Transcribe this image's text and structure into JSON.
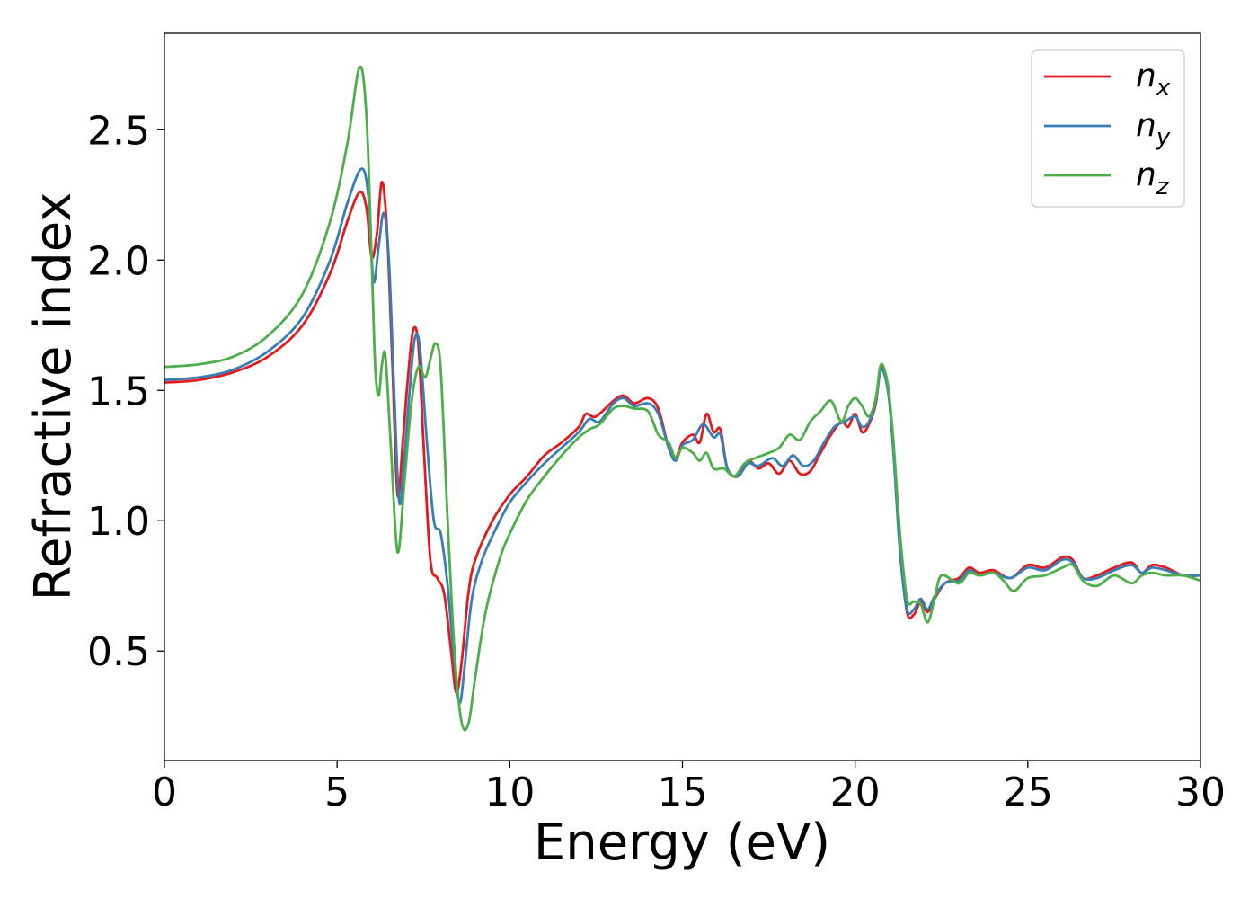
{
  "chart_data": {
    "type": "line",
    "xlabel": "Energy (eV)",
    "ylabel": "Refractive index",
    "xlim": [
      0,
      30
    ],
    "ylim": [
      0.08,
      2.87
    ],
    "xticks": [
      0,
      5,
      10,
      15,
      20,
      25,
      30
    ],
    "xtick_labels": [
      "0",
      "5",
      "10",
      "15",
      "20",
      "25",
      "30"
    ],
    "yticks": [
      0.5,
      1.0,
      1.5,
      2.0,
      2.5
    ],
    "ytick_labels": [
      "0.5",
      "1.0",
      "1.5",
      "2.0",
      "2.5"
    ],
    "grid": false,
    "legend_position": "top-right",
    "series": [
      {
        "name": "n",
        "subscript": "x",
        "color": "#e41a1c",
        "points": [
          [
            0,
            1.53
          ],
          [
            1,
            1.54
          ],
          [
            2,
            1.57
          ],
          [
            3,
            1.63
          ],
          [
            4,
            1.75
          ],
          [
            4.8,
            1.95
          ],
          [
            5.3,
            2.15
          ],
          [
            5.65,
            2.26
          ],
          [
            5.85,
            2.2
          ],
          [
            6.0,
            2.01
          ],
          [
            6.15,
            2.1
          ],
          [
            6.3,
            2.3
          ],
          [
            6.45,
            2.1
          ],
          [
            6.6,
            1.6
          ],
          [
            6.75,
            1.1
          ],
          [
            6.9,
            1.3
          ],
          [
            7.05,
            1.55
          ],
          [
            7.2,
            1.73
          ],
          [
            7.35,
            1.68
          ],
          [
            7.5,
            1.3
          ],
          [
            7.7,
            0.85
          ],
          [
            7.9,
            0.78
          ],
          [
            8.1,
            0.72
          ],
          [
            8.3,
            0.5
          ],
          [
            8.45,
            0.34
          ],
          [
            8.6,
            0.45
          ],
          [
            8.8,
            0.72
          ],
          [
            9.0,
            0.85
          ],
          [
            9.5,
            1.0
          ],
          [
            10,
            1.1
          ],
          [
            10.5,
            1.17
          ],
          [
            11,
            1.25
          ],
          [
            11.5,
            1.3
          ],
          [
            12,
            1.36
          ],
          [
            12.2,
            1.41
          ],
          [
            12.5,
            1.4
          ],
          [
            13,
            1.46
          ],
          [
            13.3,
            1.48
          ],
          [
            13.6,
            1.45
          ],
          [
            14,
            1.47
          ],
          [
            14.3,
            1.43
          ],
          [
            14.6,
            1.28
          ],
          [
            14.8,
            1.24
          ],
          [
            15,
            1.3
          ],
          [
            15.3,
            1.33
          ],
          [
            15.5,
            1.3
          ],
          [
            15.7,
            1.41
          ],
          [
            15.9,
            1.34
          ],
          [
            16.1,
            1.35
          ],
          [
            16.3,
            1.2
          ],
          [
            16.6,
            1.17
          ],
          [
            16.9,
            1.23
          ],
          [
            17.2,
            1.2
          ],
          [
            17.5,
            1.22
          ],
          [
            17.8,
            1.18
          ],
          [
            18.1,
            1.23
          ],
          [
            18.4,
            1.18
          ],
          [
            18.7,
            1.19
          ],
          [
            19,
            1.26
          ],
          [
            19.3,
            1.33
          ],
          [
            19.6,
            1.38
          ],
          [
            19.8,
            1.36
          ],
          [
            20.0,
            1.41
          ],
          [
            20.2,
            1.34
          ],
          [
            20.4,
            1.37
          ],
          [
            20.6,
            1.45
          ],
          [
            20.75,
            1.59
          ],
          [
            20.95,
            1.5
          ],
          [
            21.1,
            1.3
          ],
          [
            21.3,
            0.9
          ],
          [
            21.5,
            0.65
          ],
          [
            21.7,
            0.64
          ],
          [
            21.9,
            0.69
          ],
          [
            22.1,
            0.65
          ],
          [
            22.3,
            0.7
          ],
          [
            22.6,
            0.76
          ],
          [
            23,
            0.78
          ],
          [
            23.3,
            0.82
          ],
          [
            23.6,
            0.8
          ],
          [
            24,
            0.81
          ],
          [
            24.5,
            0.78
          ],
          [
            25,
            0.83
          ],
          [
            25.5,
            0.82
          ],
          [
            26,
            0.86
          ],
          [
            26.3,
            0.85
          ],
          [
            26.6,
            0.78
          ],
          [
            27,
            0.79
          ],
          [
            27.5,
            0.82
          ],
          [
            28,
            0.84
          ],
          [
            28.3,
            0.8
          ],
          [
            28.6,
            0.83
          ],
          [
            29,
            0.82
          ],
          [
            29.5,
            0.79
          ],
          [
            30,
            0.79
          ]
        ]
      },
      {
        "name": "n",
        "subscript": "y",
        "color": "#377eb8",
        "points": [
          [
            0,
            1.54
          ],
          [
            1,
            1.55
          ],
          [
            2,
            1.58
          ],
          [
            3,
            1.65
          ],
          [
            4,
            1.78
          ],
          [
            4.8,
            2.0
          ],
          [
            5.3,
            2.22
          ],
          [
            5.7,
            2.35
          ],
          [
            5.9,
            2.25
          ],
          [
            6.05,
            1.92
          ],
          [
            6.2,
            2.05
          ],
          [
            6.35,
            2.18
          ],
          [
            6.5,
            2.0
          ],
          [
            6.65,
            1.5
          ],
          [
            6.8,
            1.07
          ],
          [
            6.95,
            1.25
          ],
          [
            7.1,
            1.5
          ],
          [
            7.25,
            1.7
          ],
          [
            7.4,
            1.66
          ],
          [
            7.6,
            1.3
          ],
          [
            7.8,
            1.0
          ],
          [
            8.0,
            0.95
          ],
          [
            8.2,
            0.75
          ],
          [
            8.4,
            0.45
          ],
          [
            8.55,
            0.3
          ],
          [
            8.7,
            0.45
          ],
          [
            8.9,
            0.7
          ],
          [
            9.2,
            0.85
          ],
          [
            9.6,
            0.97
          ],
          [
            10,
            1.07
          ],
          [
            10.5,
            1.15
          ],
          [
            11,
            1.22
          ],
          [
            11.5,
            1.28
          ],
          [
            12,
            1.34
          ],
          [
            12.3,
            1.39
          ],
          [
            12.6,
            1.38
          ],
          [
            13,
            1.45
          ],
          [
            13.3,
            1.47
          ],
          [
            13.6,
            1.44
          ],
          [
            14,
            1.45
          ],
          [
            14.3,
            1.41
          ],
          [
            14.6,
            1.28
          ],
          [
            14.8,
            1.23
          ],
          [
            15,
            1.29
          ],
          [
            15.3,
            1.31
          ],
          [
            15.6,
            1.37
          ],
          [
            15.9,
            1.32
          ],
          [
            16.1,
            1.33
          ],
          [
            16.3,
            1.2
          ],
          [
            16.6,
            1.17
          ],
          [
            16.9,
            1.22
          ],
          [
            17.2,
            1.21
          ],
          [
            17.6,
            1.24
          ],
          [
            17.9,
            1.21
          ],
          [
            18.2,
            1.25
          ],
          [
            18.5,
            1.21
          ],
          [
            18.8,
            1.23
          ],
          [
            19.1,
            1.3
          ],
          [
            19.4,
            1.36
          ],
          [
            19.7,
            1.38
          ],
          [
            20.0,
            1.4
          ],
          [
            20.2,
            1.36
          ],
          [
            20.4,
            1.38
          ],
          [
            20.6,
            1.46
          ],
          [
            20.75,
            1.58
          ],
          [
            20.95,
            1.5
          ],
          [
            21.1,
            1.28
          ],
          [
            21.3,
            0.88
          ],
          [
            21.5,
            0.66
          ],
          [
            21.7,
            0.66
          ],
          [
            21.9,
            0.7
          ],
          [
            22.1,
            0.66
          ],
          [
            22.3,
            0.71
          ],
          [
            22.6,
            0.76
          ],
          [
            23,
            0.77
          ],
          [
            23.3,
            0.81
          ],
          [
            23.6,
            0.79
          ],
          [
            24,
            0.8
          ],
          [
            24.5,
            0.78
          ],
          [
            25,
            0.82
          ],
          [
            25.5,
            0.81
          ],
          [
            26,
            0.85
          ],
          [
            26.3,
            0.84
          ],
          [
            26.6,
            0.78
          ],
          [
            27,
            0.78
          ],
          [
            27.5,
            0.81
          ],
          [
            28,
            0.83
          ],
          [
            28.3,
            0.8
          ],
          [
            28.6,
            0.82
          ],
          [
            29,
            0.81
          ],
          [
            29.5,
            0.79
          ],
          [
            30,
            0.79
          ]
        ]
      },
      {
        "name": "n",
        "subscript": "z",
        "color": "#4daf4a",
        "points": [
          [
            0,
            1.59
          ],
          [
            1,
            1.6
          ],
          [
            2,
            1.63
          ],
          [
            3,
            1.71
          ],
          [
            4,
            1.87
          ],
          [
            4.8,
            2.15
          ],
          [
            5.3,
            2.45
          ],
          [
            5.65,
            2.74
          ],
          [
            5.85,
            2.55
          ],
          [
            6.0,
            2.0
          ],
          [
            6.1,
            1.6
          ],
          [
            6.2,
            1.48
          ],
          [
            6.3,
            1.6
          ],
          [
            6.4,
            1.63
          ],
          [
            6.55,
            1.3
          ],
          [
            6.75,
            0.88
          ],
          [
            6.95,
            1.15
          ],
          [
            7.15,
            1.45
          ],
          [
            7.35,
            1.59
          ],
          [
            7.55,
            1.55
          ],
          [
            7.7,
            1.62
          ],
          [
            7.85,
            1.68
          ],
          [
            8.0,
            1.58
          ],
          [
            8.2,
            1.0
          ],
          [
            8.4,
            0.5
          ],
          [
            8.6,
            0.23
          ],
          [
            8.8,
            0.22
          ],
          [
            9.0,
            0.4
          ],
          [
            9.3,
            0.65
          ],
          [
            9.7,
            0.85
          ],
          [
            10,
            0.95
          ],
          [
            10.5,
            1.08
          ],
          [
            11,
            1.17
          ],
          [
            11.5,
            1.25
          ],
          [
            12,
            1.32
          ],
          [
            12.3,
            1.35
          ],
          [
            12.6,
            1.37
          ],
          [
            13,
            1.43
          ],
          [
            13.3,
            1.44
          ],
          [
            13.6,
            1.43
          ],
          [
            14,
            1.42
          ],
          [
            14.3,
            1.33
          ],
          [
            14.6,
            1.3
          ],
          [
            14.8,
            1.24
          ],
          [
            15,
            1.28
          ],
          [
            15.3,
            1.26
          ],
          [
            15.5,
            1.23
          ],
          [
            15.7,
            1.26
          ],
          [
            15.9,
            1.2
          ],
          [
            16.2,
            1.2
          ],
          [
            16.5,
            1.17
          ],
          [
            16.8,
            1.22
          ],
          [
            17.1,
            1.24
          ],
          [
            17.5,
            1.26
          ],
          [
            17.8,
            1.28
          ],
          [
            18.1,
            1.33
          ],
          [
            18.4,
            1.31
          ],
          [
            18.7,
            1.38
          ],
          [
            19,
            1.42
          ],
          [
            19.3,
            1.46
          ],
          [
            19.6,
            1.38
          ],
          [
            19.8,
            1.44
          ],
          [
            20.0,
            1.47
          ],
          [
            20.2,
            1.44
          ],
          [
            20.4,
            1.4
          ],
          [
            20.6,
            1.47
          ],
          [
            20.75,
            1.6
          ],
          [
            20.95,
            1.52
          ],
          [
            21.1,
            1.32
          ],
          [
            21.3,
            0.95
          ],
          [
            21.5,
            0.7
          ],
          [
            21.7,
            0.69
          ],
          [
            21.9,
            0.68
          ],
          [
            22.1,
            0.61
          ],
          [
            22.3,
            0.7
          ],
          [
            22.5,
            0.79
          ],
          [
            23,
            0.76
          ],
          [
            23.3,
            0.8
          ],
          [
            23.6,
            0.79
          ],
          [
            24,
            0.8
          ],
          [
            24.3,
            0.77
          ],
          [
            24.6,
            0.73
          ],
          [
            25,
            0.78
          ],
          [
            25.5,
            0.79
          ],
          [
            26,
            0.82
          ],
          [
            26.3,
            0.83
          ],
          [
            26.6,
            0.77
          ],
          [
            27,
            0.75
          ],
          [
            27.5,
            0.79
          ],
          [
            28,
            0.76
          ],
          [
            28.3,
            0.79
          ],
          [
            28.6,
            0.8
          ],
          [
            29,
            0.79
          ],
          [
            29.5,
            0.79
          ],
          [
            30,
            0.77
          ]
        ]
      }
    ]
  }
}
